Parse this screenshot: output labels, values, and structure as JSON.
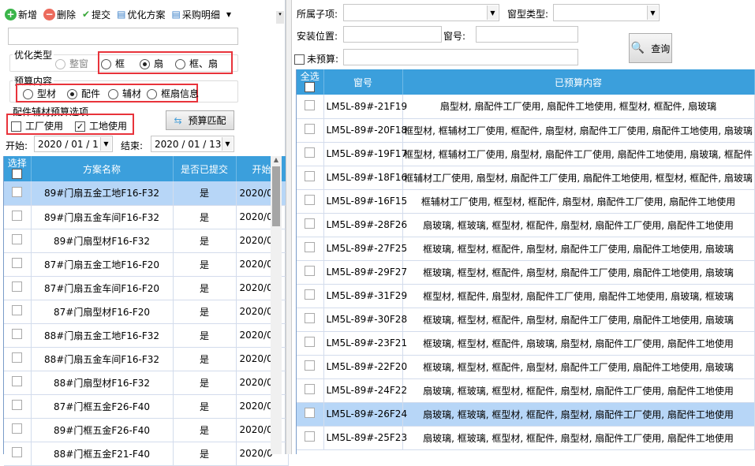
{
  "toolbar": {
    "add": "新增",
    "delete": "删除",
    "submit": "提交",
    "plan": "优化方案",
    "purchase": "采购明细"
  },
  "opt_type": {
    "label": "优化类型",
    "options": [
      "整窗",
      "框",
      "扇",
      "框、扇"
    ],
    "selected": "扇"
  },
  "budget_content": {
    "label": "预算内容",
    "options": [
      "型材",
      "配件",
      "辅材",
      "框扇信息"
    ],
    "selected": "配件"
  },
  "budget_options": {
    "label": "配件辅材预算选项",
    "factory": "工厂使用",
    "factory_checked": false,
    "site": "工地使用",
    "site_checked": true
  },
  "match_button": "预算匹配",
  "dates": {
    "start_label": "开始:",
    "start": "2020 / 01 / 1",
    "end_label": "结束:",
    "end": "2020 / 01 / 13"
  },
  "plan_table": {
    "headers": [
      "选择",
      "方案名称",
      "是否已提交",
      "开始"
    ],
    "rows": [
      {
        "name": "89#门扇五金工地F16-F32",
        "submitted": "是",
        "start": "2020/0",
        "selected": true
      },
      {
        "name": "89#门扇五金车间F16-F32",
        "submitted": "是",
        "start": "2020/0"
      },
      {
        "name": "89#门扇型材F16-F32",
        "submitted": "是",
        "start": "2020/0"
      },
      {
        "name": "87#门扇五金工地F16-F20",
        "submitted": "是",
        "start": "2020/0"
      },
      {
        "name": "87#门扇五金车间F16-F20",
        "submitted": "是",
        "start": "2020/0"
      },
      {
        "name": "87#门扇型材F16-F20",
        "submitted": "是",
        "start": "2020/0"
      },
      {
        "name": "88#门扇五金工地F16-F32",
        "submitted": "是",
        "start": "2020/0"
      },
      {
        "name": "88#门扇五金车间F16-F32",
        "submitted": "是",
        "start": "2020/0"
      },
      {
        "name": "88#门扇型材F16-F32",
        "submitted": "是",
        "start": "2020/0"
      },
      {
        "name": "87#门框五金F26-F40",
        "submitted": "是",
        "start": "2020/0"
      },
      {
        "name": "89#门框五金F26-F40",
        "submitted": "是",
        "start": "2020/0"
      },
      {
        "name": "88#门框五金F21-F40",
        "submitted": "是",
        "start": "2020/0"
      }
    ]
  },
  "filters": {
    "subitem_label": "所属子项:",
    "window_type_label": "窗型类型:",
    "location_label": "安装位置:",
    "window_no_label": "窗号:",
    "unbudgeted_label": "未预算:",
    "query": "查询"
  },
  "window_table": {
    "headers": [
      "全选",
      "窗号",
      "已预算内容"
    ],
    "rows": [
      {
        "no": "LM5L-89#-21F19",
        "content": "扇型材, 扇配件工厂使用, 扇配件工地使用, 框型材, 框配件, 扇玻璃"
      },
      {
        "no": "LM5L-89#-20F18",
        "content": "框型材, 框辅材工厂使用, 框配件, 扇型材, 扇配件工厂使用, 扇配件工地使用, 扇玻璃"
      },
      {
        "no": "LM5L-89#-19F17",
        "content": "框型材, 框辅材工厂使用, 扇型材, 扇配件工厂使用, 扇配件工地使用, 扇玻璃, 框配件"
      },
      {
        "no": "LM5L-89#-18F16",
        "content": "框辅材工厂使用, 扇型材, 扇配件工厂使用, 扇配件工地使用, 框型材, 框配件, 扇玻璃"
      },
      {
        "no": "LM5L-89#-16F15",
        "content": "框辅材工厂使用, 框型材, 框配件, 扇型材, 扇配件工厂使用, 扇配件工地使用"
      },
      {
        "no": "LM5L-89#-28F26",
        "content": "扇玻璃, 框玻璃, 框型材, 框配件, 扇型材, 扇配件工厂使用, 扇配件工地使用"
      },
      {
        "no": "LM5L-89#-27F25",
        "content": "框玻璃, 框型材, 框配件, 扇型材, 扇配件工厂使用, 扇配件工地使用, 扇玻璃"
      },
      {
        "no": "LM5L-89#-29F27",
        "content": "框玻璃, 框型材, 框配件, 扇型材, 扇配件工厂使用, 扇配件工地使用, 扇玻璃"
      },
      {
        "no": "LM5L-89#-31F29",
        "content": "框型材, 框配件, 扇型材, 扇配件工厂使用, 扇配件工地使用, 扇玻璃, 框玻璃"
      },
      {
        "no": "LM5L-89#-30F28",
        "content": "框玻璃, 框型材, 框配件, 扇型材, 扇配件工厂使用, 扇配件工地使用, 扇玻璃"
      },
      {
        "no": "LM5L-89#-23F21",
        "content": "框玻璃, 框型材, 框配件, 扇玻璃, 扇型材, 扇配件工厂使用, 扇配件工地使用"
      },
      {
        "no": "LM5L-89#-22F20",
        "content": "框玻璃, 框型材, 框配件, 扇型材, 扇配件工厂使用, 扇配件工地使用, 扇玻璃"
      },
      {
        "no": "LM5L-89#-24F22",
        "content": "扇玻璃, 框玻璃, 框型材, 框配件, 扇型材, 扇配件工厂使用, 扇配件工地使用"
      },
      {
        "no": "LM5L-89#-26F24",
        "content": "扇玻璃, 框玻璃, 框型材, 框配件, 扇型材, 扇配件工厂使用, 扇配件工地使用",
        "selected": true
      },
      {
        "no": "LM5L-89#-25F23",
        "content": "扇玻璃, 框玻璃, 框型材, 框配件, 扇型材, 扇配件工厂使用, 扇配件工地使用"
      }
    ]
  },
  "colors": {
    "header": "#3b9fdc",
    "selected_row": "#b7d6f7",
    "highlight_box": "#e8333b"
  }
}
